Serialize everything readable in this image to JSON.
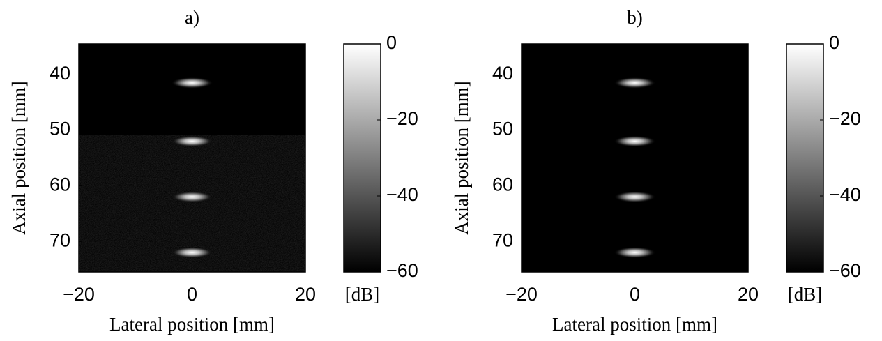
{
  "chart_data": [
    {
      "type": "bmode",
      "title": "a)",
      "xlabel": "Lateral position [mm]",
      "ylabel": "Axial position [mm]",
      "xlim": [
        -20,
        20
      ],
      "xticks": [
        {
          "value": -20,
          "label": "−20"
        },
        0,
        20
      ],
      "ylim": [
        75.5,
        34.5
      ],
      "yticks": [
        40,
        50,
        60,
        70
      ],
      "x": [
        0,
        0,
        0,
        0
      ],
      "values": [
        41.5,
        52,
        62,
        72
      ],
      "speckle": true,
      "colorbar": {
        "label": "[dB]",
        "clim": [
          -60,
          0
        ],
        "ticks": [
          0,
          {
            "value": -20,
            "label": "−20"
          },
          {
            "value": -40,
            "label": "−40"
          },
          {
            "value": -60,
            "label": "−60"
          }
        ]
      }
    },
    {
      "type": "bmode",
      "title": "b)",
      "xlabel": "Lateral position [mm]",
      "ylabel": "Axial position [mm]",
      "xlim": [
        -20,
        20
      ],
      "xticks": [
        {
          "value": -20,
          "label": "−20"
        },
        0,
        20
      ],
      "ylim": [
        75.5,
        34.5
      ],
      "yticks": [
        40,
        50,
        60,
        70
      ],
      "x": [
        0,
        0,
        0,
        0
      ],
      "values": [
        41.5,
        52,
        62,
        72
      ],
      "speckle": false,
      "colorbar": {
        "label": "[dB]",
        "clim": [
          -60,
          0
        ],
        "ticks": [
          0,
          {
            "value": -20,
            "label": "−20"
          },
          {
            "value": -40,
            "label": "−40"
          },
          {
            "value": -60,
            "label": "−60"
          }
        ]
      }
    }
  ]
}
